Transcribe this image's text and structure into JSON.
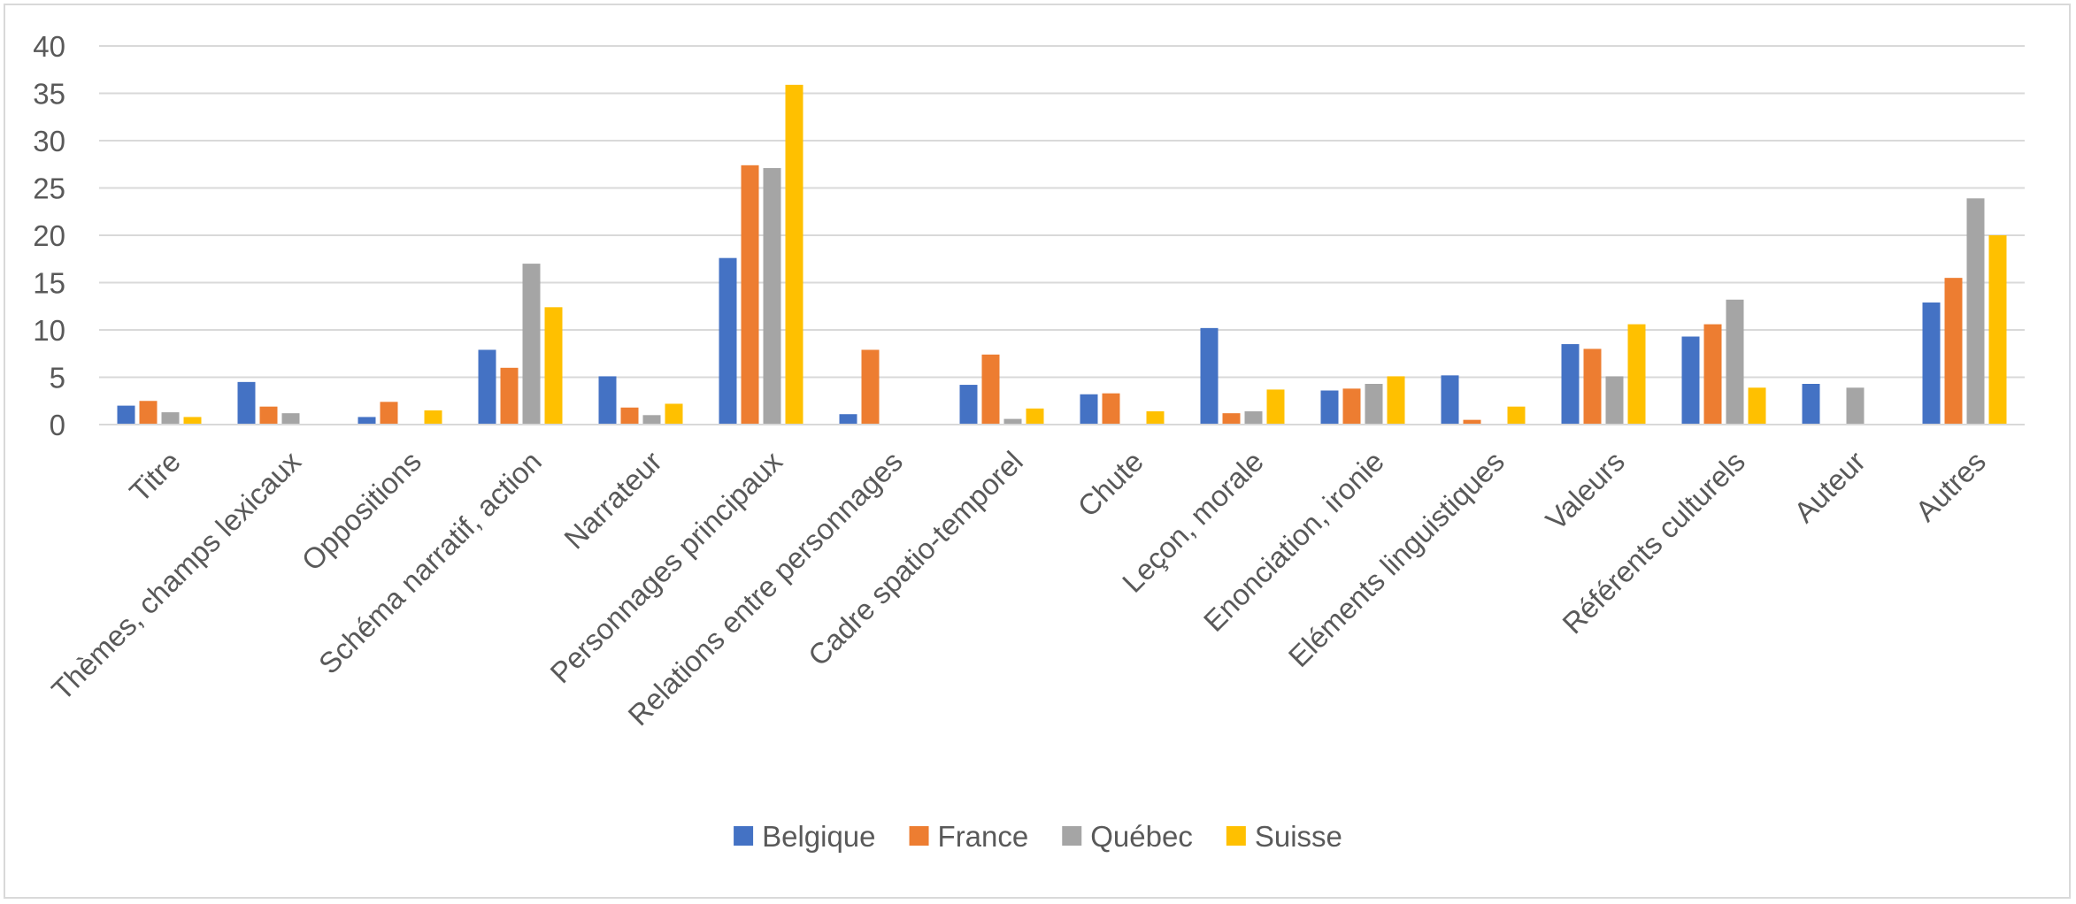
{
  "chart_data": {
    "type": "bar",
    "title": "",
    "xlabel": "",
    "ylabel": "",
    "ylim": [
      0,
      40
    ],
    "yticks": [
      0,
      5,
      10,
      15,
      20,
      25,
      30,
      35,
      40
    ],
    "grid": true,
    "legend_position": "bottom",
    "categories": [
      "Titre",
      "Thèmes, champs lexicaux",
      "Oppositions",
      "Schéma narratif, action",
      "Narrateur",
      "Personnages principaux",
      "Relations entre personnages",
      "Cadre spatio-temporel",
      "Chute",
      "Leçon, morale",
      "Enonciation, ironie",
      "Eléments linguistiques",
      "Valeurs",
      "Référents culturels",
      "Auteur",
      "Autres"
    ],
    "series": [
      {
        "name": "Belgique",
        "color": "#4472c4",
        "values": [
          2.0,
          4.5,
          0.8,
          7.9,
          5.1,
          17.6,
          1.1,
          4.2,
          3.2,
          10.2,
          3.6,
          5.2,
          8.5,
          9.3,
          4.3,
          12.9
        ]
      },
      {
        "name": "France",
        "color": "#ed7d31",
        "values": [
          2.5,
          1.9,
          2.4,
          6.0,
          1.8,
          27.4,
          7.9,
          7.4,
          3.3,
          1.2,
          3.8,
          0.5,
          8.0,
          10.6,
          0,
          15.5
        ]
      },
      {
        "name": "Québec",
        "color": "#a5a5a5",
        "values": [
          1.3,
          1.2,
          0,
          17.0,
          1.0,
          27.1,
          0,
          0.6,
          0,
          1.4,
          4.3,
          0,
          5.1,
          13.2,
          3.9,
          23.9
        ]
      },
      {
        "name": "Suisse",
        "color": "#ffc000",
        "values": [
          0.8,
          0,
          1.5,
          12.4,
          2.2,
          35.9,
          0,
          1.7,
          1.4,
          3.7,
          5.1,
          1.9,
          10.6,
          3.9,
          0,
          20.0
        ]
      }
    ]
  }
}
